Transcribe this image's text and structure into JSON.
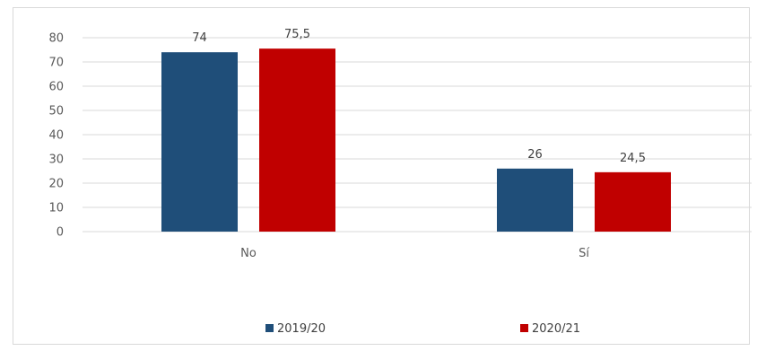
{
  "chart_data": {
    "type": "bar",
    "categories": [
      "No",
      "Sí"
    ],
    "series": [
      {
        "name": "2019/20",
        "values": [
          74,
          26
        ],
        "labels": [
          "74",
          "26"
        ],
        "color": "#1f4e79"
      },
      {
        "name": "2020/21",
        "values": [
          75.5,
          24.5
        ],
        "labels": [
          "75,5",
          "24,5"
        ],
        "color": "#c00000"
      }
    ],
    "y_ticks": [
      "0",
      "10",
      "20",
      "30",
      "40",
      "50",
      "60",
      "70",
      "80"
    ],
    "ylim": [
      0,
      80
    ],
    "grid": true,
    "legend_position": "bottom"
  }
}
